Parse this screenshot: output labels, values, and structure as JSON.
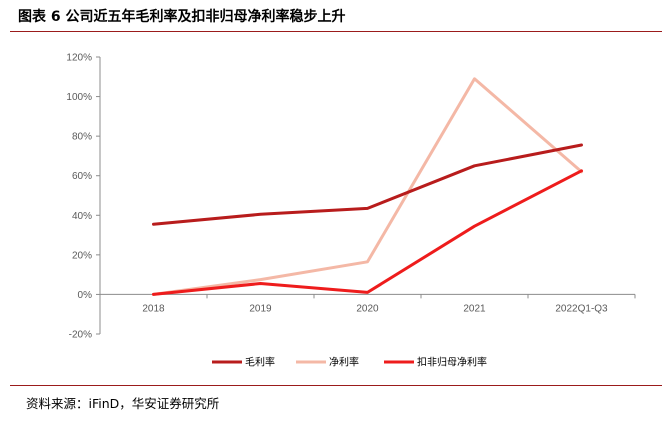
{
  "header": {
    "title": "图表 6  公司近五年毛利率及扣非归母净利率稳步上升"
  },
  "footer": {
    "source": "资料来源：iFinD，华安证券研究所"
  },
  "chart_data": {
    "type": "line",
    "title": "公司近五年毛利率及扣非归母净利率稳步上升",
    "categories": [
      "2018",
      "2019",
      "2020",
      "2021",
      "2022Q1-Q3"
    ],
    "ylim": [
      -20,
      120
    ],
    "yticks": [
      120,
      100,
      80,
      60,
      40,
      20,
      0,
      -20
    ],
    "ytick_labels": [
      "120%",
      "100%",
      "80%",
      "60%",
      "40%",
      "20%",
      "0%",
      "-20%"
    ],
    "xlabel": "",
    "ylabel": "",
    "grid": false,
    "legend_position": "bottom",
    "series": [
      {
        "name": "毛利率",
        "color": "#b81c1c",
        "values": [
          35.5,
          40.5,
          43.5,
          65.0,
          75.5
        ]
      },
      {
        "name": "净利率",
        "color": "#f4b8a6",
        "values": [
          0.0,
          7.5,
          16.5,
          109.0,
          62.0
        ]
      },
      {
        "name": "扣非归母净利率",
        "color": "#ee1c1c",
        "values": [
          0.0,
          5.5,
          1.0,
          34.5,
          62.5
        ]
      }
    ]
  }
}
